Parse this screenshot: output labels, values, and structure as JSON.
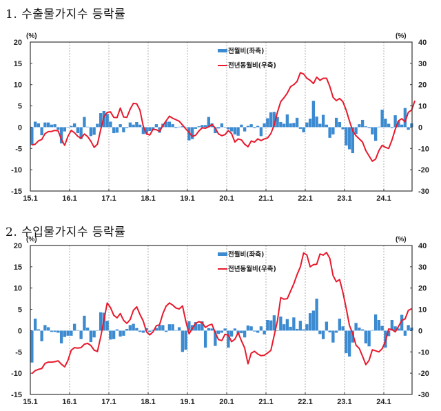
{
  "chart_data": [
    {
      "type": "bar+line",
      "title": "1. 수출물가지수 등락률",
      "legend": {
        "placement": "top-center",
        "entries": [
          {
            "label": "전월비(좌축)",
            "kind": "bar",
            "color": "#3c8ad0"
          },
          {
            "label": "전년동월비(우축)",
            "kind": "line",
            "color": "#e8192c"
          }
        ]
      },
      "left_axis": {
        "unit": "(%)",
        "ylim": [
          -15,
          20
        ],
        "ticks": [
          20,
          15,
          10,
          5,
          0,
          -5,
          -10,
          -15
        ]
      },
      "right_axis": {
        "unit": "(%)",
        "ylim": [
          -30,
          40
        ],
        "ticks": [
          40,
          30,
          20,
          10,
          0,
          -10,
          -20,
          -30
        ]
      },
      "x_tick_labels": [
        "15.1",
        "16.1",
        "17.1",
        "18.1",
        "19.1",
        "20.1",
        "21.1",
        "22.1",
        "23.1",
        "24.1"
      ],
      "x_start": "2015.01",
      "grid": "vertical dashed at each January",
      "series": [
        {
          "name": "전월비(좌축)",
          "axis": "left",
          "values": [
            -4.2,
            1.3,
            0.9,
            -1.9,
            1.1,
            1.1,
            0.6,
            0.7,
            -0.6,
            -3.8,
            -1.0,
            0.0,
            0.3,
            0.9,
            -1.4,
            -2.8,
            2.4,
            0.1,
            -2.1,
            -1.8,
            0.8,
            3.3,
            3.8,
            3.1,
            1.3,
            -1.4,
            -1.3,
            0.7,
            -1.2,
            -0.2,
            1.1,
            0.6,
            1.2,
            0.6,
            -1.6,
            -1.5,
            -0.9,
            -0.7,
            0.7,
            -1.3,
            0.8,
            1.3,
            1.3,
            0.7,
            -0.2,
            0.1,
            0.2,
            -0.1,
            -3.1,
            -2.8,
            -0.4,
            0.2,
            0.5,
            0.5,
            2.4,
            0.9,
            -1.4,
            -0.3,
            0.9,
            0.0,
            -0.5,
            -1.0,
            -1.7,
            -2.0,
            0.6,
            -1.0,
            0.3,
            0.7,
            -0.2,
            0.3,
            -2.1,
            0.9,
            2.1,
            3.5,
            3.6,
            2.4,
            1.2,
            0.8,
            3.0,
            0.9,
            1.0,
            2.2,
            -0.4,
            -1.2,
            1.1,
            2.0,
            6.2,
            2.5,
            0.8,
            2.9,
            0.6,
            -2.5,
            -1.7,
            2.2,
            1.2,
            -0.5,
            -4.3,
            -5.2,
            -6.1,
            -1.6,
            0.7,
            1.7,
            0.2,
            -0.2,
            -1.7,
            -3.2,
            0.1,
            4.1,
            2.0,
            0.8,
            -0.2,
            2.8,
            1.4,
            0.6,
            4.5,
            -0.6,
            0.9
          ]
        },
        {
          "name": "전년동월비(우축)",
          "axis": "right",
          "values": [
            -8.4,
            -8.0,
            -6.4,
            -5.8,
            -3.0,
            -2.1,
            -2.0,
            -1.5,
            -1.7,
            -5.8,
            -8.5,
            -4.3,
            -1.5,
            -2.6,
            -4.3,
            -5.2,
            -3.2,
            -4.4,
            -6.6,
            -9.5,
            -8.0,
            -1.2,
            5.0,
            6.9,
            7.2,
            4.6,
            4.5,
            9.0,
            4.8,
            4.6,
            8.5,
            11.2,
            11.0,
            8.0,
            0.5,
            -3.2,
            -3.7,
            -1.0,
            -1.2,
            -2.0,
            0.8,
            3.0,
            5.2,
            4.2,
            3.5,
            2.8,
            1.0,
            -0.8,
            -2.5,
            -4.3,
            -3.8,
            -1.8,
            -0.3,
            -0.5,
            0.2,
            1.3,
            -0.4,
            -3.2,
            -4.0,
            -3.5,
            -1.6,
            -3.0,
            -7.0,
            -5.5,
            -6.0,
            -8.0,
            -9.2,
            -6.5,
            -7.0,
            -5.5,
            -6.3,
            -5.5,
            -5.0,
            -3.0,
            1.0,
            7.0,
            12.0,
            13.8,
            16.0,
            19.0,
            20.0,
            21.5,
            25.6,
            25.0,
            23.0,
            22.0,
            20.5,
            23.5,
            22.0,
            23.0,
            23.0,
            19.2,
            14.0,
            12.5,
            13.5,
            12.0,
            8.0,
            3.0,
            -1.8,
            -4.0,
            -5.5,
            -7.0,
            -11.0,
            -13.5,
            -16.0,
            -15.0,
            -11.0,
            -8.5,
            -9.5,
            -10.0,
            -6.0,
            -1.0,
            3.0,
            4.0,
            2.5,
            7.0,
            8.0,
            12.5
          ]
        }
      ]
    },
    {
      "type": "bar+line",
      "title": "2. 수입물가지수 등락률",
      "legend": {
        "placement": "top-center",
        "entries": [
          {
            "label": "전월비(좌축)",
            "kind": "bar",
            "color": "#3c8ad0"
          },
          {
            "label": "전년동월비(우축)",
            "kind": "line",
            "color": "#e8192c"
          }
        ]
      },
      "left_axis": {
        "unit": "(%)",
        "ylim": [
          -15,
          20
        ],
        "ticks": [
          20,
          15,
          10,
          5,
          0,
          -5,
          -10,
          -15
        ]
      },
      "right_axis": {
        "unit": "(%)",
        "ylim": [
          -30,
          40
        ],
        "ticks": [
          40,
          30,
          20,
          10,
          0,
          -10,
          -20,
          -30
        ]
      },
      "x_tick_labels": [
        "15.1",
        "16.1",
        "17.1",
        "18.1",
        "19.1",
        "20.1",
        "21.1",
        "22.1",
        "23.1",
        "24.1"
      ],
      "x_start": "2015.01",
      "grid": "vertical dashed at each January",
      "series": [
        {
          "name": "전월비(좌축)",
          "axis": "left",
          "values": [
            -7.5,
            2.8,
            0.3,
            -2.5,
            1.3,
            0.8,
            -0.3,
            -0.3,
            -0.5,
            -3.0,
            -1.5,
            -1.2,
            -1.2,
            1.6,
            0.1,
            -2.0,
            3.5,
            0.7,
            -2.7,
            -1.6,
            0.1,
            4.3,
            4.2,
            2.3,
            -2.1,
            -2.0,
            0.3,
            -1.4,
            -1.2,
            0.4,
            1.3,
            1.6,
            0.6,
            -0.3,
            -0.5,
            0.6,
            -0.3,
            0.2,
            0.6,
            1.3,
            1.3,
            -0.3,
            1.5,
            1.5,
            0.1,
            0.8,
            -5.0,
            -4.5,
            2.2,
            1.3,
            2.0,
            1.5,
            2.2,
            -4.0,
            0.6,
            0.5,
            -3.6,
            -0.8,
            -0.5,
            0.5,
            -4.0,
            -1.4,
            0.5,
            -0.8,
            -0.6,
            -1.6,
            1.2,
            1.0,
            -0.2,
            -0.5,
            1.0,
            -0.9,
            2.5,
            2.4,
            3.6,
            -0.1,
            3.3,
            1.5,
            2.7,
            0.9,
            3.1,
            0.4,
            2.3,
            0.3,
            1.5,
            4.1,
            4.7,
            7.5,
            -0.8,
            -2.0,
            2.1,
            -0.4,
            -2.8,
            -0.5,
            2.8,
            1.0,
            -5.3,
            -6.1,
            -2.8,
            1.8,
            0.7,
            0.3,
            -3.0,
            -3.7,
            0.1,
            3.8,
            2.5,
            1.1,
            -4.0,
            -1.3,
            2.5,
            1.0,
            0.5,
            3.7,
            -1.2,
            1.3,
            0.7
          ]
        },
        {
          "name": "전년동월비(우축)",
          "axis": "right",
          "values": [
            -20.2,
            -18.8,
            -18.2,
            -17.8,
            -15.4,
            -14.8,
            -14.8,
            -14.6,
            -14.2,
            -15.8,
            -17.0,
            -14.0,
            -9.2,
            -8.0,
            -8.2,
            -8.0,
            -6.4,
            -6.0,
            -7.0,
            -9.2,
            -9.8,
            -3.0,
            5.0,
            13.0,
            10.8,
            7.2,
            6.0,
            8.0,
            4.8,
            3.4,
            5.2,
            9.5,
            11.2,
            7.6,
            4.5,
            -0.6,
            -2.0,
            -0.6,
            2.3,
            2.8,
            8.0,
            11.5,
            13.0,
            12.0,
            10.6,
            10.2,
            11.6,
            4.5,
            -1.5,
            1.0,
            3.4,
            4.2,
            3.7,
            1.5,
            2.5,
            3.0,
            -1.0,
            -4.2,
            -4.7,
            -1.7,
            -2.2,
            -5.2,
            -4.0,
            -1.0,
            -4.8,
            -8.2,
            -15.6,
            -10.6,
            -9.7,
            -11.0,
            -11.8,
            -11.6,
            -10.5,
            -9.3,
            -2.3,
            4.5,
            15.5,
            14.8,
            15.0,
            18.5,
            22.0,
            26.3,
            30.0,
            36.5,
            35.5,
            30.0,
            31.0,
            31.2,
            36.0,
            35.5,
            36.7,
            34.0,
            25.8,
            23.0,
            24.0,
            18.0,
            10.5,
            2.5,
            -1.5,
            -6.8,
            -8.4,
            -12.0,
            -16.0,
            -14.0,
            -9.0,
            -9.5,
            -10.0,
            -8.5,
            -5.0,
            0.8,
            0.5,
            -0.6,
            2.0,
            4.8,
            5.5,
            9.5,
            10.3
          ]
        }
      ]
    }
  ]
}
